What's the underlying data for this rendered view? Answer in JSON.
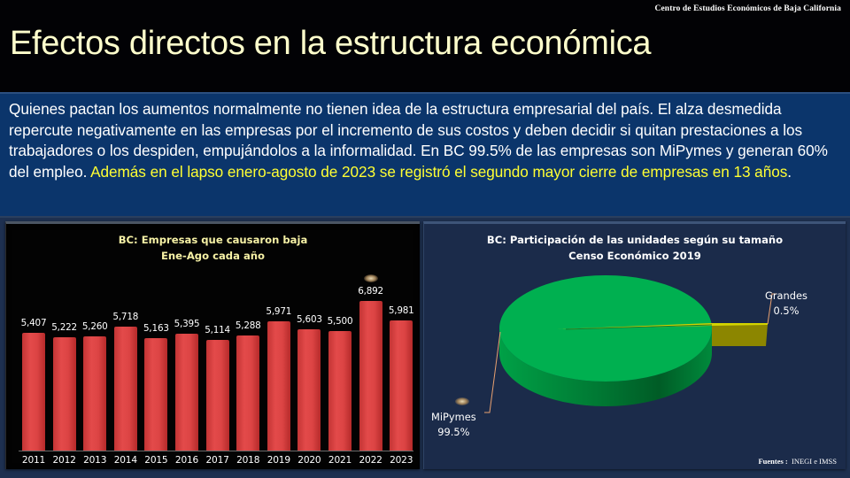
{
  "header": {
    "org": "Centro de Estudios  Económicos  de Baja California",
    "title": "Efectos directos en la estructura económica"
  },
  "intro": {
    "text": " Quienes pactan los aumentos normalmente no tienen idea de la estructura empresarial del país. El alza desmedida repercute negativamente en las empresas por el incremento de sus costos y deben decidir si quitan prestaciones a los trabajadores o los despiden, empujándolos a la informalidad. En BC 99.5% de las empresas son MiPymes y generan 60% del empleo. ",
    "highlight": "Además en el lapso enero-agosto de 2023 se registró el segundo mayor cierre de empresas en 13 años",
    "end": "."
  },
  "colors": {
    "bar": "#dc4444",
    "pie_mipymes": "#00b050",
    "pie_grandes": "#8a8a00",
    "highlight_text": "#ffff33",
    "title_text": "#ffffcc"
  },
  "chart_data": [
    {
      "type": "bar",
      "title": "BC: Empresas que causaron baja",
      "subtitle": "Ene-Ago cada año",
      "categories": [
        "2011",
        "2012",
        "2013",
        "2014",
        "2015",
        "2016",
        "2017",
        "2018",
        "2019",
        "2020",
        "2021",
        "2022",
        "2023"
      ],
      "values": [
        5407,
        5222,
        5260,
        5718,
        5163,
        5395,
        5114,
        5288,
        5971,
        5603,
        5500,
        6892,
        5981
      ],
      "labels": [
        "5,407",
        "5,222",
        "5,260",
        "5,718",
        "5,163",
        "5,395",
        "5,114",
        "5,288",
        "5,971",
        "5,603",
        "5,500",
        "6,892",
        "5,981"
      ],
      "xlabel": "",
      "ylabel": "",
      "grid": false,
      "legend": null
    },
    {
      "type": "pie",
      "title": "BC: Participación de las unidades según su tamaño",
      "subtitle": "Censo Económico 2019",
      "categories": [
        "MiPymes",
        "Grandes"
      ],
      "values": [
        99.5,
        0.5
      ],
      "labels": [
        "99.5%",
        "0.5%"
      ],
      "style": "3d-exploded",
      "legend": null
    }
  ],
  "footer": {
    "source_label": "Fuentes :",
    "source_value": "INEGI e IMSS"
  }
}
